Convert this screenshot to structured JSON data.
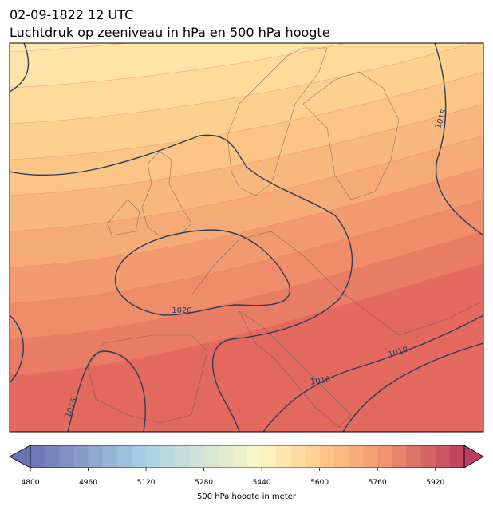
{
  "header": {
    "title": "02-09-1822 12 UTC",
    "subtitle": "Luchtdruk op zeeniveau in hPa en 500 hPa hoogte"
  },
  "map": {
    "contour_labels": [
      "1015",
      "1020",
      "1010",
      "1010",
      "1015"
    ]
  },
  "colorbar": {
    "label": "500 hPa hoogte in meter",
    "lim": [
      4800,
      6000
    ],
    "step": 40,
    "ticks": [
      4800,
      4960,
      5120,
      5280,
      5440,
      5600,
      5760,
      5920
    ],
    "colors": [
      [
        4800,
        "#6c73b4"
      ],
      [
        5120,
        "#a9d2e5"
      ],
      [
        5440,
        "#fdf7c4"
      ],
      [
        5600,
        "#fccb8b"
      ],
      [
        5760,
        "#f49a6f"
      ],
      [
        6000,
        "#bd3e5d"
      ]
    ]
  }
}
